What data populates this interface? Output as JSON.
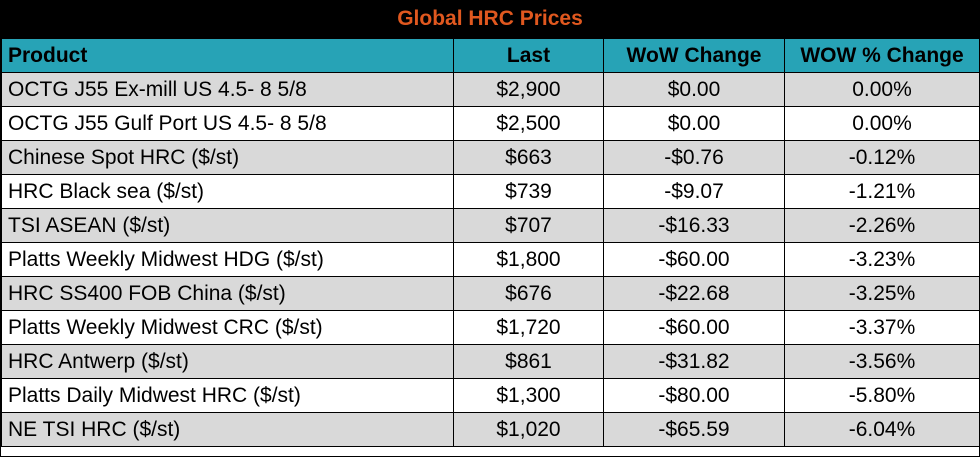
{
  "title": "Global HRC Prices",
  "colors": {
    "title_bg": "#000000",
    "title_text": "#e0581f",
    "header_bg": "#27a3b6",
    "row_shade": "#d9d9d9",
    "row_plain": "#ffffff"
  },
  "columns": [
    "Product",
    "Last",
    "WoW Change",
    "WOW % Change"
  ],
  "rows": [
    {
      "product": "OCTG J55 Ex-mill US 4.5- 8 5/8",
      "last": "$2,900",
      "wow": "$0.00",
      "pct": "0.00%"
    },
    {
      "product": "OCTG J55 Gulf Port US 4.5- 8 5/8",
      "last": "$2,500",
      "wow": "$0.00",
      "pct": "0.00%"
    },
    {
      "product": "Chinese Spot HRC ($/st)",
      "last": "$663",
      "wow": "-$0.76",
      "pct": "-0.12%"
    },
    {
      "product": "HRC Black sea ($/st)",
      "last": "$739",
      "wow": "-$9.07",
      "pct": "-1.21%"
    },
    {
      "product": "TSI ASEAN ($/st)",
      "last": "$707",
      "wow": "-$16.33",
      "pct": "-2.26%"
    },
    {
      "product": "Platts Weekly Midwest HDG ($/st)",
      "last": "$1,800",
      "wow": "-$60.00",
      "pct": "-3.23%"
    },
    {
      "product": "HRC SS400 FOB China ($/st)",
      "last": "$676",
      "wow": "-$22.68",
      "pct": "-3.25%"
    },
    {
      "product": "Platts Weekly Midwest CRC ($/st)",
      "last": "$1,720",
      "wow": "-$60.00",
      "pct": "-3.37%"
    },
    {
      "product": "HRC Antwerp ($/st)",
      "last": "$861",
      "wow": "-$31.82",
      "pct": "-3.56%"
    },
    {
      "product": "Platts Daily Midwest HRC ($/st)",
      "last": "$1,300",
      "wow": "-$80.00",
      "pct": "-5.80%"
    },
    {
      "product": "NE TSI HRC ($/st)",
      "last": "$1,020",
      "wow": "-$65.59",
      "pct": "-6.04%"
    }
  ]
}
